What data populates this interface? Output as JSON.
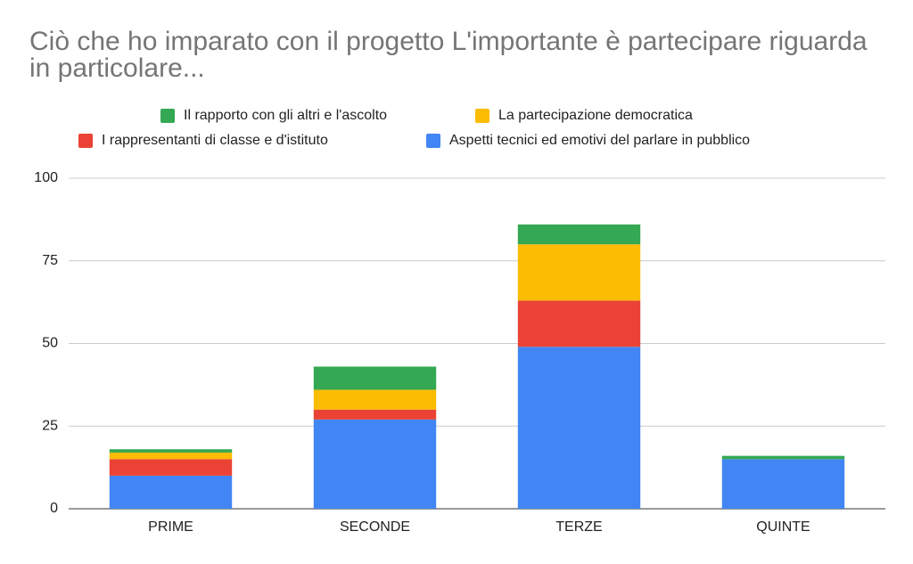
{
  "chart_data": {
    "type": "stacked_bar",
    "title": "Ciò che ho imparato con il progetto L'importante è partecipare riguarda in particolare...",
    "categories": [
      "PRIME",
      "SECONDE",
      "TERZE",
      "QUINTE"
    ],
    "series": [
      {
        "name": "Il rapporto con gli altri e l'ascolto",
        "color": "#34a853",
        "values": [
          1,
          7,
          6,
          1
        ]
      },
      {
        "name": "La partecipazione democratica",
        "color": "#fbbc04",
        "values": [
          2,
          6,
          17,
          0
        ]
      },
      {
        "name": "I rappresentanti di classe e d'istituto",
        "color": "#ea4335",
        "values": [
          5,
          3,
          14,
          0
        ]
      },
      {
        "name": "Aspetti tecnici ed emotivi del parlare in pubblico",
        "color": "#4285f4",
        "values": [
          10,
          27,
          49,
          15
        ]
      }
    ],
    "ylim": [
      0,
      100
    ],
    "yticks": [
      0,
      25,
      50,
      75,
      100
    ],
    "grid": true,
    "legend": "top"
  }
}
